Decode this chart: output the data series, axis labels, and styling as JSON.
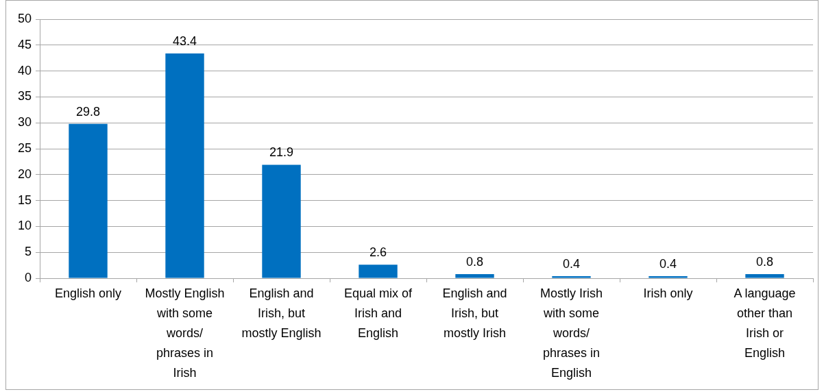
{
  "chart_data": {
    "type": "bar",
    "categories": [
      "English only",
      "Mostly English with some words/ phrases in Irish",
      "English and Irish, but mostly English",
      "Equal mix of Irish and English",
      "English and Irish, but mostly Irish",
      "Mostly Irish with some words/ phrases in English",
      "Irish only",
      "A language other than Irish or English"
    ],
    "values": [
      29.8,
      43.4,
      21.9,
      2.6,
      0.8,
      0.4,
      0.4,
      0.8
    ],
    "color": "#0070c0",
    "ylim": [
      0,
      50
    ],
    "yticks": [
      0,
      5,
      10,
      15,
      20,
      25,
      30,
      35,
      40,
      45,
      50
    ],
    "grid": "y",
    "legend": false,
    "data_labels": true
  }
}
